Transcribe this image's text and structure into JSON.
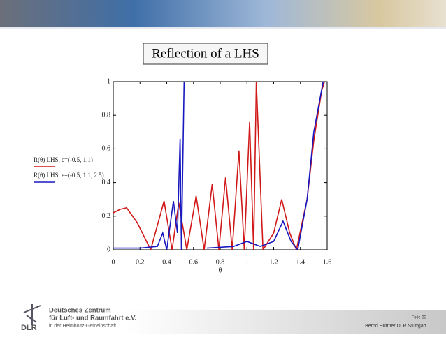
{
  "chart_data": {
    "type": "line",
    "title": "Reflection of a LHS",
    "xlabel": "θ",
    "xlim": [
      0,
      1.6
    ],
    "ylim": [
      0,
      1
    ],
    "xticks": [
      0,
      0.2,
      0.4,
      0.6,
      0.8,
      1,
      1.2,
      1.4,
      1.6
    ],
    "yticks": [
      0,
      0.2,
      0.4,
      0.6,
      0.8,
      1
    ],
    "series": [
      {
        "name": "R(θ) LHS, ε=(-0.5, 1.1)",
        "color": "#d01818",
        "x": [
          0,
          0.05,
          0.1,
          0.18,
          0.28,
          0.38,
          0.44,
          0.49,
          0.55,
          0.62,
          0.68,
          0.74,
          0.79,
          0.84,
          0.89,
          0.94,
          0.98,
          1.02,
          1.05,
          1.07,
          1.12,
          1.2,
          1.26,
          1.32,
          1.37,
          1.45,
          1.5,
          1.56,
          1.58
        ],
        "values": [
          0.22,
          0.24,
          0.25,
          0.16,
          0,
          0.29,
          0,
          0.28,
          0,
          0.32,
          0,
          0.39,
          0,
          0.43,
          0,
          0.59,
          0,
          0.76,
          0,
          1,
          0,
          0.1,
          0.3,
          0.1,
          0,
          0.3,
          0.65,
          0.95,
          1
        ]
      },
      {
        "name": "R(θ) LHS, ε=(-0.5, 1.1, 2.5)",
        "color": "#1818c0",
        "x": [
          0,
          0.2,
          0.33,
          0.37,
          0.4,
          0.45,
          0.48,
          0.5,
          0.51,
          0.52,
          0.53,
          0.56,
          0.7,
          0.9,
          1,
          1.1,
          1.2,
          1.27,
          1.33,
          1.38,
          1.45,
          1.5,
          1.57
        ],
        "values": [
          0.01,
          0.01,
          0.02,
          0.1,
          0,
          0.29,
          0.1,
          0.66,
          0,
          0.5,
          1,
          null,
          0.01,
          0.02,
          0.05,
          0.02,
          0.05,
          0.17,
          0.05,
          0,
          0.3,
          0.7,
          1
        ]
      }
    ]
  },
  "footer": {
    "logo": "DLR",
    "org": [
      "Deutsches Zentrum",
      "für Luft- und Raumfahrt e.V.",
      "in der Helmholtz-Gemeinschaft"
    ],
    "folio": "Folie 33",
    "author": "Bernd Hüttner DLR Stuttgart"
  }
}
